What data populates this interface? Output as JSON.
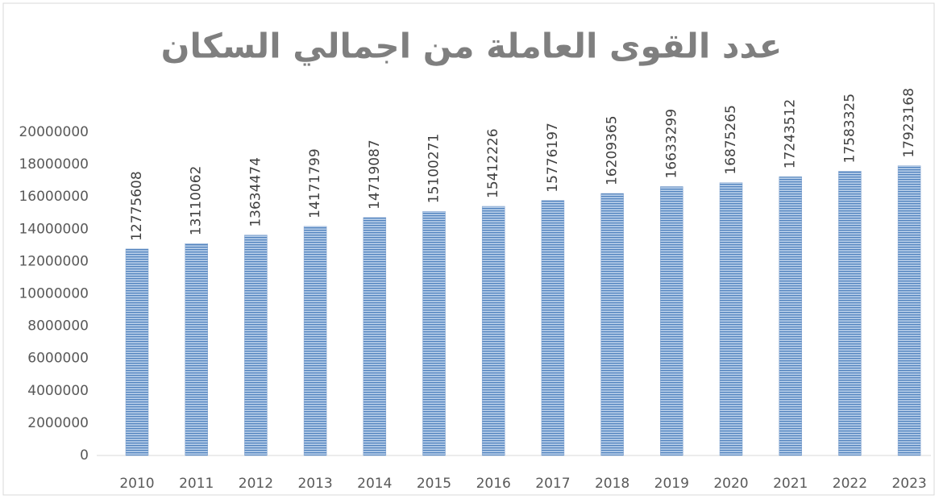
{
  "chart_data": {
    "type": "bar",
    "title": "عدد القوى العاملة من اجمالي السكان",
    "categories": [
      "2010",
      "2011",
      "2012",
      "2013",
      "2014",
      "2015",
      "2016",
      "2017",
      "2018",
      "2019",
      "2020",
      "2021",
      "2022",
      "2023"
    ],
    "values": [
      12775608,
      13110062,
      13634474,
      14171799,
      14719087,
      15100271,
      15412226,
      15776197,
      16209365,
      16633299,
      16875265,
      17243512,
      17583325,
      17923168
    ],
    "color": "#4f81bd",
    "ylim": [
      0,
      20000000
    ],
    "yticks": [
      0,
      2000000,
      4000000,
      6000000,
      8000000,
      10000000,
      12000000,
      14000000,
      16000000,
      18000000,
      20000000
    ],
    "grid": false
  }
}
